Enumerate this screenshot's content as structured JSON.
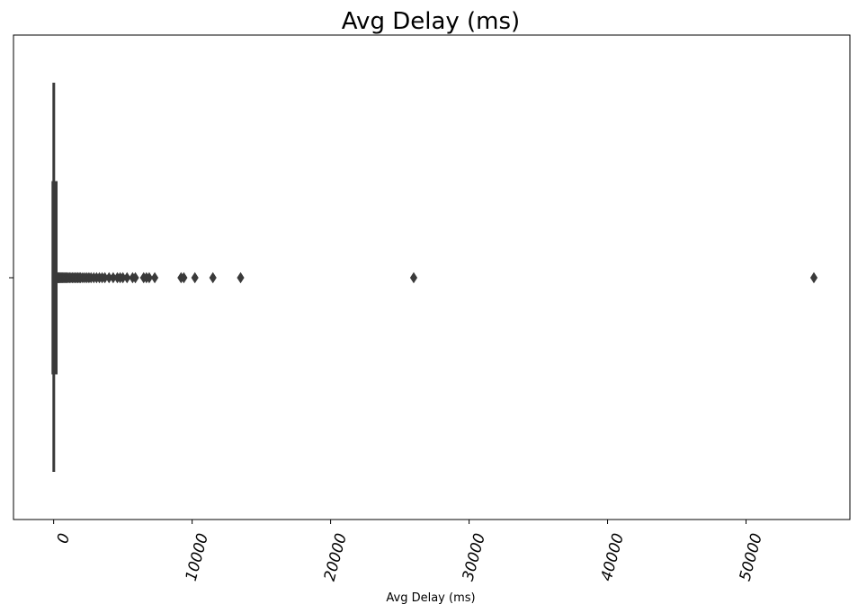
{
  "chart_data": {
    "type": "box",
    "title": "Avg Delay (ms)",
    "xlabel": "Avg Delay (ms)",
    "ylabel": "",
    "xlim": [
      -2900,
      57500
    ],
    "xticks": [
      0,
      10000,
      20000,
      30000,
      40000,
      50000
    ],
    "xtick_labels": [
      "0",
      "10000",
      "20000",
      "30000",
      "40000",
      "50000"
    ],
    "grid": false,
    "colors": {
      "box": "#3a3a3a",
      "fliers": "#3a3a3a"
    },
    "box": {
      "whisker_low": 0,
      "q1": 10,
      "median": 40,
      "q3": 120,
      "whisker_high": 280
    },
    "outliers": [
      300,
      350,
      400,
      450,
      500,
      560,
      620,
      680,
      750,
      820,
      900,
      980,
      1060,
      1150,
      1250,
      1350,
      1450,
      1550,
      1650,
      1750,
      1850,
      1950,
      2100,
      2250,
      2400,
      2550,
      2700,
      2900,
      3100,
      3300,
      3500,
      3700,
      4000,
      4300,
      4600,
      4800,
      5000,
      5300,
      5700,
      5900,
      6500,
      6700,
      6900,
      7300,
      9200,
      9400,
      10200,
      11500,
      13500,
      26000,
      54900
    ]
  }
}
